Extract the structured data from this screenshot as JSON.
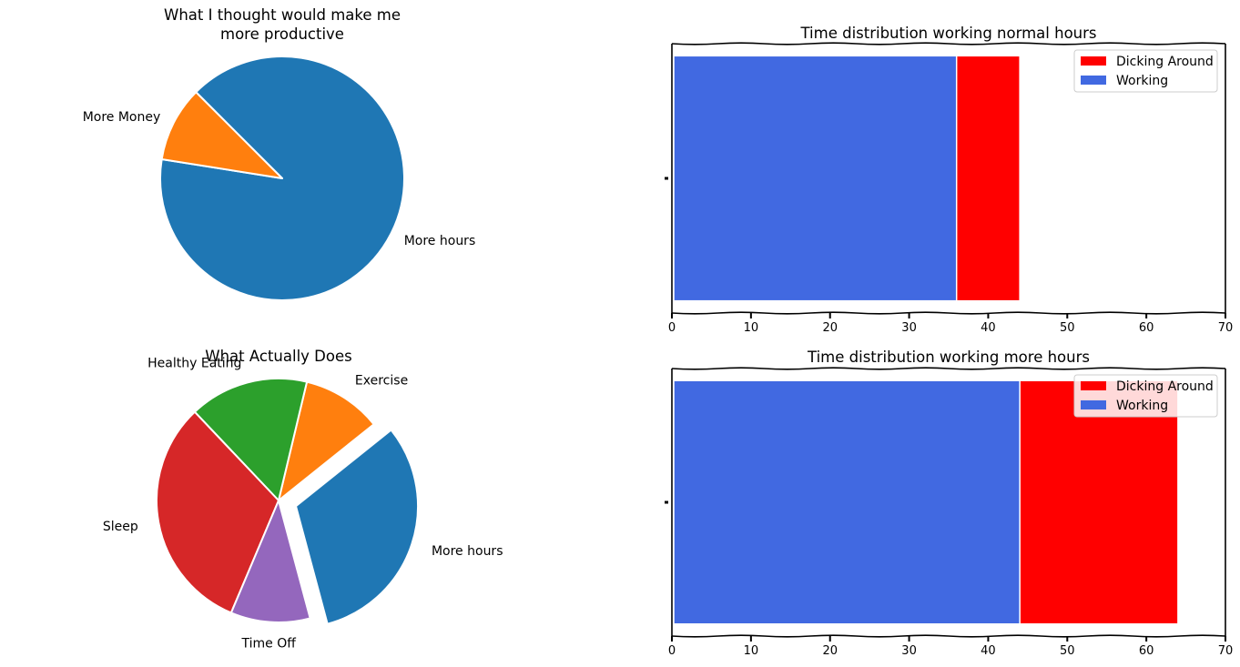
{
  "chart_data": [
    {
      "type": "pie",
      "title_lines": [
        "What I thought would make me",
        "more productive"
      ],
      "slices": [
        {
          "label": "More hours",
          "value": 90,
          "color": "#1f77b4"
        },
        {
          "label": "More Money",
          "value": 10,
          "color": "#ff7f0e"
        }
      ]
    },
    {
      "type": "pie",
      "title_lines": [
        "What Actually Does"
      ],
      "slices": [
        {
          "label": "More hours",
          "value": 30,
          "color": "#1f77b4",
          "exploded": true
        },
        {
          "label": "Exercise",
          "value": 10,
          "color": "#ff7f0e"
        },
        {
          "label": "Healthy Eating",
          "value": 15,
          "color": "#2ca02c"
        },
        {
          "label": "Sleep",
          "value": 30,
          "color": "#d62728"
        },
        {
          "label": "Time Off",
          "value": 10,
          "color": "#9467bd"
        }
      ]
    },
    {
      "type": "bar",
      "orientation": "horizontal-stacked",
      "title": "Time distribution working normal hours",
      "xlim": [
        0,
        70
      ],
      "xticks": [
        "0",
        "10",
        "20",
        "30",
        "40",
        "50",
        "60",
        "70"
      ],
      "legend_position": "top-right",
      "series": [
        {
          "name": "Dicking Around",
          "value": 44,
          "color": "#ff0000"
        },
        {
          "name": "Working",
          "value": 36,
          "color": "#4169e1"
        }
      ]
    },
    {
      "type": "bar",
      "orientation": "horizontal-stacked",
      "title": "Time distribution working more hours",
      "xlim": [
        0,
        70
      ],
      "xticks": [
        "0",
        "10",
        "20",
        "30",
        "40",
        "50",
        "60",
        "70"
      ],
      "legend_position": "top-right",
      "series": [
        {
          "name": "Dicking Around",
          "value": 64,
          "color": "#ff0000"
        },
        {
          "name": "Working",
          "value": 44,
          "color": "#4169e1"
        }
      ]
    }
  ]
}
